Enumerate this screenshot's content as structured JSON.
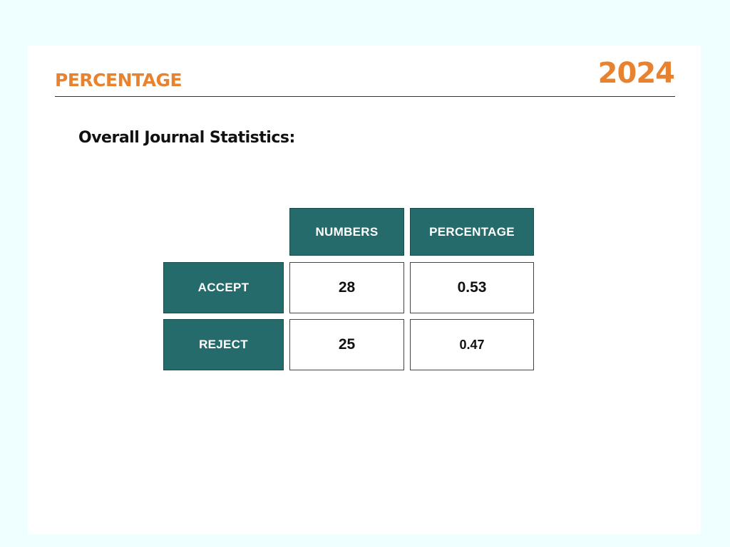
{
  "header": {
    "title": "PERCENTAGE",
    "year": "2024"
  },
  "section": {
    "heading": "Overall Journal Statistics:"
  },
  "table": {
    "columns": [
      "NUMBERS",
      "PERCENTAGE"
    ],
    "rows": [
      {
        "label": "ACCEPT",
        "number": "28",
        "percentage": "0.53"
      },
      {
        "label": "REJECT",
        "number": "25",
        "percentage": "0.47"
      }
    ],
    "colors": {
      "header_fill": "#266b6b",
      "accent": "#e8822e"
    }
  }
}
